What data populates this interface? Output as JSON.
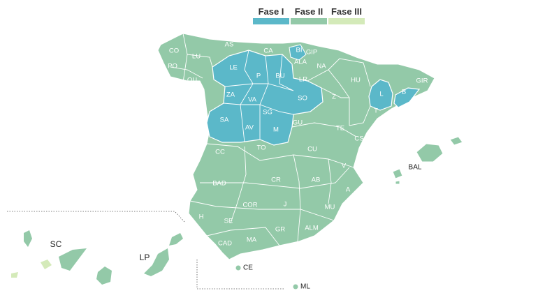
{
  "legend": {
    "phase1": "Fase I",
    "phase2": "Fase II",
    "phase3": "Fase III"
  },
  "colors": {
    "phase1": "#5bb8c9",
    "phase2": "#93c9a8",
    "phase3": "#d4eab9",
    "border": "#ffffff"
  },
  "labels": {
    "CO": "CO",
    "LU": "LU",
    "AS": "AS",
    "CA": "CA",
    "BI": "BI",
    "GIP": "GIP",
    "PO": "PO",
    "ALA": "ALA",
    "NA": "NA",
    "OU": "OU",
    "LE": "LE",
    "P": "P",
    "BU": "BU",
    "LR": "LR",
    "HU": "HU",
    "L": "L",
    "GIR": "GIR",
    "B": "B",
    "ZA": "ZA",
    "VA": "VA",
    "SO": "SO",
    "Z": "Z",
    "T": "T",
    "SA": "SA",
    "AV": "AV",
    "SG": "SG",
    "M": "M",
    "GU": "GU",
    "TE": "TE",
    "CS": "CS",
    "CC": "CC",
    "TO": "TO",
    "CU": "CU",
    "V": "V",
    "BAL": "BAL",
    "BAD": "BAD",
    "CR": "CR",
    "AB": "AB",
    "A": "A",
    "COR": "COR",
    "J": "J",
    "MU": "MU",
    "H": "H",
    "SE": "SE",
    "GR": "GR",
    "ALM": "ALM",
    "CAD": "CAD",
    "MA": "MA",
    "SC": "SC",
    "LP": "LP",
    "CE": "CE",
    "ML": "ML"
  }
}
